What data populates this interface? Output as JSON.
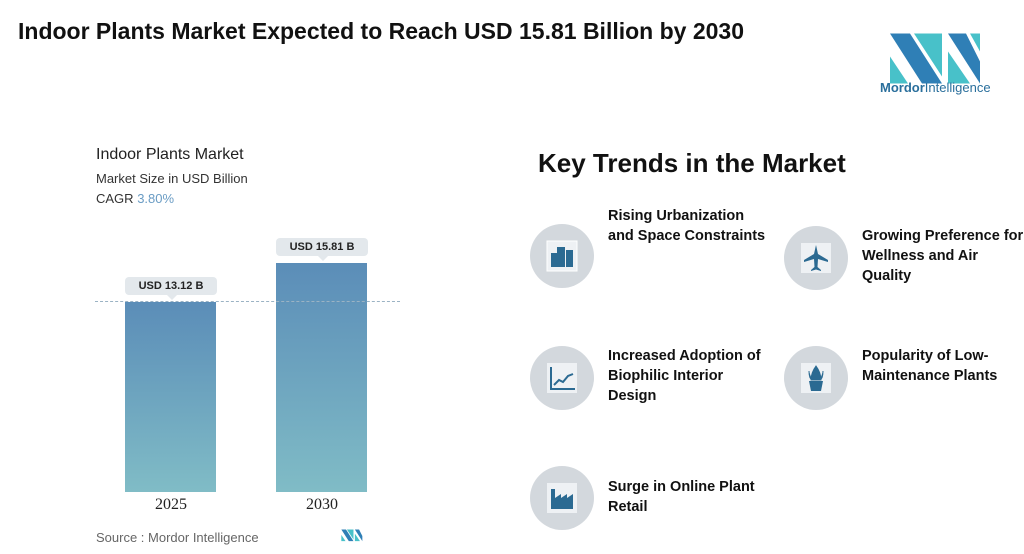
{
  "title": "Indoor Plants Market Expected to Reach USD 15.81 Billion by 2030",
  "logo": {
    "brand_bold": "Mordor",
    "brand_light": "Intelligence"
  },
  "chart_data": {
    "type": "bar",
    "title": "Indoor Plants Market",
    "subtitle": "Market Size in USD Billion",
    "cagr_label": "CAGR",
    "cagr_value": "3.80%",
    "categories": [
      "2025",
      "2030"
    ],
    "values": [
      13.12,
      15.81
    ],
    "data_labels": [
      "USD 13.12 B",
      "USD 15.81 B"
    ],
    "ylim": [
      0,
      16
    ],
    "colors": {
      "bar_top": "#5b8db8",
      "bar_bottom": "#80bcc6"
    },
    "source": "Source :  Mordor Intelligence"
  },
  "trends": {
    "title": "Key Trends in the Market",
    "items": [
      {
        "label": "Rising Urbanization and Space Constraints",
        "icon": "buildings-icon"
      },
      {
        "label": "Growing Preference for Wellness and Air Quality",
        "icon": "airplane-icon"
      },
      {
        "label": "Increased Adoption of Biophilic Interior Design",
        "icon": "line-chart-icon"
      },
      {
        "label": "Popularity of Low-Maintenance Plants",
        "icon": "potted-plant-icon"
      },
      {
        "label": "Surge in Online Plant Retail",
        "icon": "factory-icon"
      }
    ]
  }
}
